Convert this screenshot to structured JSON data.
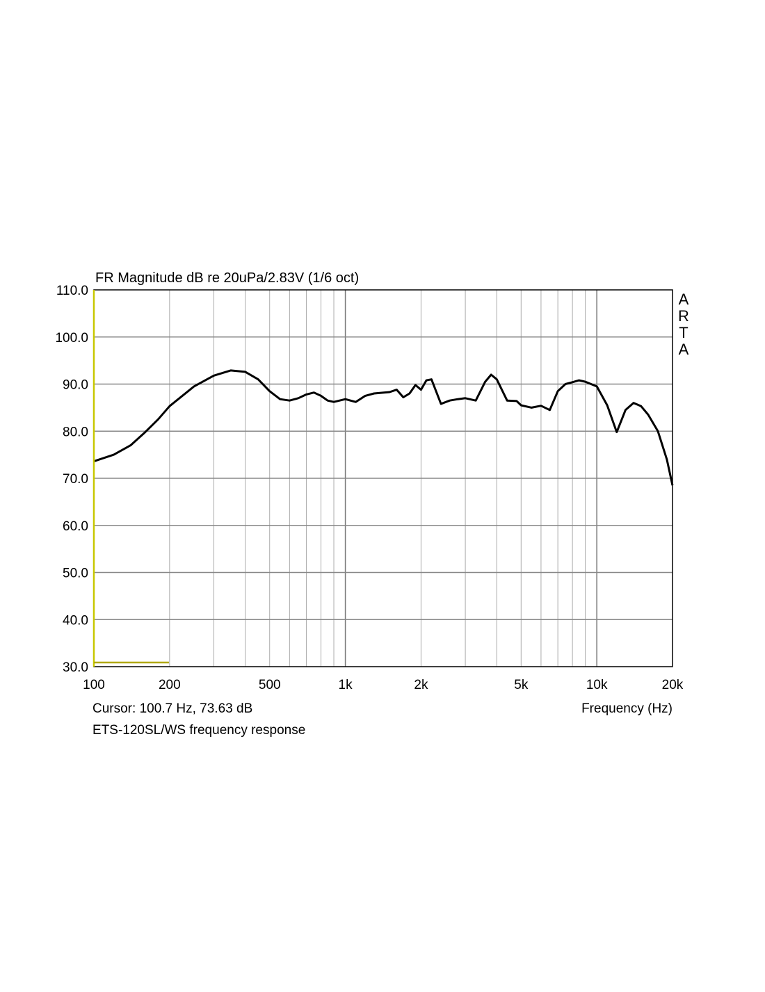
{
  "chart_data": {
    "type": "line",
    "title": "FR Magnitude dB re 20uPa/2.83V (1/6 oct)",
    "xlabel": "Frequency (Hz)",
    "ylabel": "",
    "xscale": "log",
    "xlim": [
      100,
      20000
    ],
    "ylim": [
      30,
      110
    ],
    "grid": true,
    "y_ticks": [
      110,
      100,
      90,
      80,
      70,
      60,
      50,
      40,
      30
    ],
    "y_tick_labels": [
      "110.0",
      "100.0",
      "90.0",
      "80.0",
      "70.0",
      "60.0",
      "50.0",
      "40.0",
      "30.0"
    ],
    "x_ticks": [
      100,
      200,
      500,
      1000,
      2000,
      5000,
      10000,
      20000
    ],
    "x_tick_labels": [
      "100",
      "200",
      "500",
      "1k",
      "2k",
      "5k",
      "10k",
      "20k"
    ],
    "watermark": "ARTA",
    "cursor_text": "Cursor: 100.7 Hz, 73.63 dB",
    "caption": "ETS-120SL/WS frequency response",
    "cursor_color": "#c8c800",
    "series": [
      {
        "name": "ETS-120SL/WS",
        "color": "#000000",
        "x": [
          100,
          120,
          140,
          160,
          180,
          200,
          250,
          300,
          350,
          400,
          450,
          500,
          550,
          600,
          650,
          700,
          750,
          800,
          850,
          900,
          1000,
          1100,
          1200,
          1300,
          1500,
          1600,
          1700,
          1800,
          1900,
          2000,
          2100,
          2200,
          2400,
          2600,
          2800,
          3000,
          3300,
          3600,
          3800,
          4000,
          4400,
          4800,
          5000,
          5500,
          6000,
          6500,
          7000,
          7500,
          8000,
          8500,
          9000,
          10000,
          11000,
          12000,
          13000,
          14000,
          15000,
          16000,
          17500,
          19000,
          20000
        ],
        "y": [
          73.6,
          75,
          77,
          79.8,
          82.5,
          85.3,
          89.5,
          91.8,
          92.9,
          92.6,
          91,
          88.5,
          86.8,
          86.5,
          87,
          87.8,
          88.2,
          87.5,
          86.5,
          86.2,
          86.8,
          86.2,
          87.5,
          88,
          88.3,
          88.8,
          87.2,
          88,
          89.8,
          88.8,
          90.8,
          91,
          85.8,
          86.5,
          86.8,
          87,
          86.5,
          90.5,
          92,
          91,
          86.5,
          86.4,
          85.5,
          85,
          85.4,
          84.5,
          88.5,
          90,
          90.4,
          90.8,
          90.5,
          89.5,
          85.5,
          79.8,
          84.5,
          86,
          85.3,
          83.5,
          80,
          74,
          68.5
        ]
      }
    ]
  }
}
